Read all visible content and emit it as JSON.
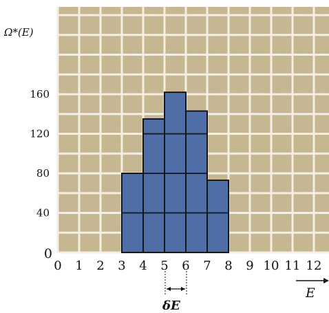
{
  "chart_data": {
    "type": "bar",
    "ylabel": "Ω*(E)",
    "xlabel": "E",
    "annotation": "δE",
    "x_ticks": [
      "0",
      "1",
      "2",
      "3",
      "4",
      "5",
      "6",
      "7",
      "8",
      "9",
      "10",
      "11",
      "12"
    ],
    "y_ticks": [
      "0",
      "40",
      "80",
      "120",
      "160"
    ],
    "ylim": [
      0,
      200
    ],
    "xlim": [
      0,
      13
    ],
    "bins": [
      {
        "x_start": 3,
        "x_end": 4,
        "value": 80
      },
      {
        "x_start": 4,
        "x_end": 5,
        "value": 135
      },
      {
        "x_start": 5,
        "x_end": 6,
        "value": 162
      },
      {
        "x_start": 6,
        "x_end": 7,
        "value": 143
      },
      {
        "x_start": 7,
        "x_end": 8,
        "value": 73
      }
    ],
    "grid": true,
    "colors": {
      "background": "#cdbf98",
      "grid": "#f3efe3",
      "bar": "#4f6ea8",
      "bar_lines": "#14161c"
    }
  }
}
